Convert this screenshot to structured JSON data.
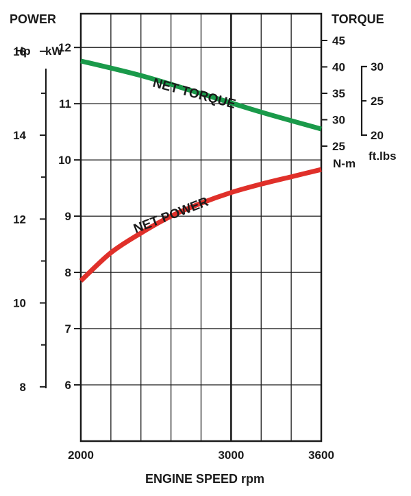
{
  "chart_data": {
    "type": "line",
    "xlabel": "ENGINE SPEED rpm",
    "x_ticks": [
      "2000",
      "3000",
      "3600"
    ],
    "xlim": [
      2000,
      3600
    ],
    "left_title": "POWER",
    "left_unit_hp": "Hp",
    "left_unit_kw": "kW",
    "hp_ticks": [
      "16",
      "14",
      "12",
      "10",
      "8"
    ],
    "kw_ticks": [
      "12",
      "11",
      "10",
      "9",
      "8",
      "7",
      "6"
    ],
    "kw_range": [
      5,
      12.6
    ],
    "right_title": "TORQUE",
    "nm_ticks": [
      "45",
      "40",
      "35",
      "30",
      "25"
    ],
    "nm_unit": "N-m",
    "ftlb_ticks": [
      "30",
      "25",
      "20"
    ],
    "ftlb_unit": "ft.lbs",
    "grid": true,
    "series": [
      {
        "name": "NET TORQUE",
        "color": "#1a9a4a",
        "x": [
          2000,
          2400,
          2800,
          3200,
          3600
        ],
        "y_kw_axis": [
          11.76,
          11.5,
          11.18,
          10.85,
          10.55
        ]
      },
      {
        "name": "NET POWER",
        "color": "#e0302a",
        "x": [
          2000,
          2200,
          2400,
          2600,
          2800,
          3000,
          3200,
          3400,
          3600
        ],
        "y_kw_axis": [
          7.85,
          8.35,
          8.7,
          9.0,
          9.23,
          9.42,
          9.57,
          9.7,
          9.83
        ]
      }
    ]
  }
}
